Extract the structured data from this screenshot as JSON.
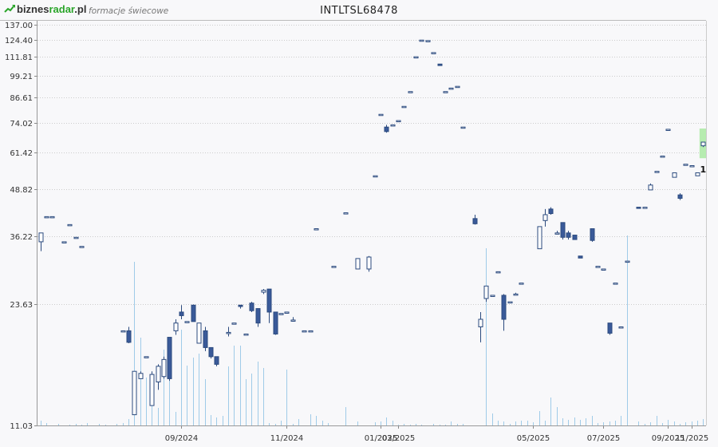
{
  "header": {
    "logo_text_a": "biznes",
    "logo_text_b": "radar",
    "logo_text_c": ".pl",
    "subtitle": "formacje świecowe",
    "ticker": "INTLTSL68478"
  },
  "colors": {
    "candle_up_fill": "#ffffff",
    "candle_down_fill": "#3a5a99",
    "candle_stroke": "#2b4a7e",
    "volume_bar": "#9fcbe8",
    "highlight": "#b6ecb0",
    "grid": "#cccccc",
    "logo_green": "#2aa52a",
    "logo_dark": "#333333"
  },
  "chart_data": {
    "type": "candlestick",
    "title": "INTLTSL68478",
    "y_scale": "log",
    "y_ticks": [
      "137.00",
      "124.40",
      "111.81",
      "99.21",
      "86.61",
      "74.02",
      "61.42",
      "48.82",
      "36.22",
      "23.63",
      "11.03"
    ],
    "ylim": [
      11.03,
      137.0
    ],
    "x_ticks": [
      "09/2024",
      "11/2024",
      "01/2025",
      "03/2025",
      "05/2025",
      "07/2025",
      "09/2025",
      "11/2025"
    ],
    "grid": true,
    "pattern_markers": [
      {
        "label": "1",
        "candle_index": 113
      }
    ],
    "candles": [
      {
        "o": 35,
        "h": 37,
        "l": 33,
        "c": 37
      },
      {
        "o": 41,
        "h": 41,
        "l": 41,
        "c": 41
      },
      {
        "o": 41,
        "h": 41,
        "l": 41,
        "c": 41
      },
      {
        "o": null
      },
      {
        "o": 35,
        "h": 35,
        "l": 35,
        "c": 35
      },
      {
        "o": 39,
        "h": 39,
        "l": 39,
        "c": 39
      },
      {
        "o": 36,
        "h": 36,
        "l": 36,
        "c": 36
      },
      {
        "o": 34,
        "h": 34,
        "l": 34,
        "c": 34
      },
      {
        "o": null
      },
      {
        "o": null
      },
      {
        "o": null
      },
      {
        "o": null
      },
      {
        "o": null
      },
      {
        "o": null
      },
      {
        "o": 20,
        "h": 20,
        "l": 20,
        "c": 20
      },
      {
        "o": 20,
        "h": 20.5,
        "l": 18.5,
        "c": 18.6
      },
      {
        "o": 11.8,
        "h": 15.5,
        "l": 11.8,
        "c": 15.5
      },
      {
        "o": 14.8,
        "h": 15.5,
        "l": 14.8,
        "c": 15.3
      },
      {
        "o": 17,
        "h": 17,
        "l": 17,
        "c": 17
      },
      {
        "o": 12.5,
        "h": 15.5,
        "l": 12.5,
        "c": 15.2
      },
      {
        "o": 14.5,
        "h": 16.2,
        "l": 13.8,
        "c": 16
      },
      {
        "o": 15,
        "h": 17,
        "l": 14.8,
        "c": 16.7
      },
      {
        "o": 19.2,
        "h": 19.2,
        "l": 14.6,
        "c": 14.8
      },
      {
        "o": 20,
        "h": 21.5,
        "l": 19.5,
        "c": 21
      },
      {
        "o": 22.5,
        "h": 23.5,
        "l": 21.5,
        "c": 22
      },
      {
        "o": 21.2,
        "h": 21.2,
        "l": 21.2,
        "c": 21.2
      },
      {
        "o": 23.5,
        "h": 23.6,
        "l": 21.2,
        "c": 21.2
      },
      {
        "o": 18.5,
        "h": 21,
        "l": 18.5,
        "c": 21
      },
      {
        "o": 20,
        "h": 20.5,
        "l": 17.6,
        "c": 18
      },
      {
        "o": 18,
        "h": 18,
        "l": 16.8,
        "c": 17
      },
      {
        "o": 17,
        "h": 17,
        "l": 16,
        "c": 16.2
      },
      {
        "o": null
      },
      {
        "o": 19.8,
        "h": 20.5,
        "l": 19.3,
        "c": 19.8
      },
      {
        "o": 21,
        "h": 21,
        "l": 21,
        "c": 21
      },
      {
        "o": 23.5,
        "h": 23.5,
        "l": 23,
        "c": 23.3
      },
      {
        "o": 19.6,
        "h": 19.6,
        "l": 19.6,
        "c": 19.6
      },
      {
        "o": 23.8,
        "h": 24,
        "l": 22.5,
        "c": 22.7
      },
      {
        "o": 23,
        "h": 23,
        "l": 20.5,
        "c": 21
      },
      {
        "o": 25.5,
        "h": 26,
        "l": 25.2,
        "c": 25.8
      },
      {
        "o": 26,
        "h": 26,
        "l": 21,
        "c": 22.5
      },
      {
        "o": 22.5,
        "h": 22.5,
        "l": 19.5,
        "c": 19.6
      },
      {
        "o": 22.3,
        "h": 22.3,
        "l": 22.3,
        "c": 22.3
      },
      {
        "o": 22.5,
        "h": 22.5,
        "l": 22.5,
        "c": 22.5
      },
      {
        "o": 21.4,
        "h": 21.8,
        "l": 21.2,
        "c": 21.4
      },
      {
        "o": null
      },
      {
        "o": 20,
        "h": 20,
        "l": 20,
        "c": 20
      },
      {
        "o": 20,
        "h": 20,
        "l": 20,
        "c": 20
      },
      {
        "o": 38,
        "h": 38,
        "l": 38,
        "c": 38
      },
      {
        "o": null
      },
      {
        "o": null
      },
      {
        "o": 30,
        "h": 30,
        "l": 30,
        "c": 30
      },
      {
        "o": null
      },
      {
        "o": 42,
        "h": 42,
        "l": 42,
        "c": 42
      },
      {
        "o": null
      },
      {
        "o": 29.5,
        "h": 31.5,
        "l": 29.5,
        "c": 31.5
      },
      {
        "o": null
      },
      {
        "o": 29.5,
        "h": 32,
        "l": 29,
        "c": 31.8
      },
      {
        "o": 53,
        "h": 53,
        "l": 53,
        "c": 53
      },
      {
        "o": 78,
        "h": 78,
        "l": 78,
        "c": 78
      },
      {
        "o": 72,
        "h": 73,
        "l": 69.5,
        "c": 70
      },
      {
        "o": 73,
        "h": 73,
        "l": 73,
        "c": 73
      },
      {
        "o": 75,
        "h": 75,
        "l": 75,
        "c": 75
      },
      {
        "o": 82,
        "h": 82,
        "l": 82,
        "c": 82
      },
      {
        "o": 90,
        "h": 90,
        "l": 90,
        "c": 90
      },
      {
        "o": 112,
        "h": 112,
        "l": 112,
        "c": 112
      },
      {
        "o": 124.4,
        "h": 124.4,
        "l": 124.4,
        "c": 124.4
      },
      {
        "o": 124,
        "h": 124,
        "l": 124,
        "c": 124
      },
      {
        "o": 115,
        "h": 115,
        "l": 115,
        "c": 115
      },
      {
        "o": 107,
        "h": 107,
        "l": 106,
        "c": 106
      },
      {
        "o": 90,
        "h": 90,
        "l": 90,
        "c": 90
      },
      {
        "o": 92,
        "h": 92,
        "l": 92,
        "c": 92
      },
      {
        "o": 93,
        "h": 93,
        "l": 93,
        "c": 93
      },
      {
        "o": 72,
        "h": 72,
        "l": 72,
        "c": 72
      },
      {
        "o": null
      },
      {
        "o": 40.5,
        "h": 41.5,
        "l": 39,
        "c": 39.2
      },
      {
        "o": 20.5,
        "h": 22.5,
        "l": 18.6,
        "c": 21.5
      },
      {
        "o": 24.5,
        "h": 26.5,
        "l": 24,
        "c": 26.5
      },
      {
        "o": 25,
        "h": 25,
        "l": 25,
        "c": 25
      },
      {
        "o": 29,
        "h": 29,
        "l": 29,
        "c": 29
      },
      {
        "o": 25,
        "h": 25.2,
        "l": 20,
        "c": 21.5
      },
      {
        "o": 24,
        "h": 24,
        "l": 24,
        "c": 24
      },
      {
        "o": 25.2,
        "h": 25.4,
        "l": 25,
        "c": 25.2
      },
      {
        "o": 27,
        "h": 27,
        "l": 27,
        "c": 27
      },
      {
        "o": null
      },
      {
        "o": null
      },
      {
        "o": 33.5,
        "h": 38.5,
        "l": 33.5,
        "c": 38.5
      },
      {
        "o": 40,
        "h": 43,
        "l": 38.5,
        "c": 41.5
      },
      {
        "o": 43,
        "h": 43.5,
        "l": 41.5,
        "c": 41.8
      },
      {
        "o": 37,
        "h": 37.5,
        "l": 37,
        "c": 37
      },
      {
        "o": 39.5,
        "h": 39.5,
        "l": 35.5,
        "c": 36
      },
      {
        "o": 37,
        "h": 37.5,
        "l": 35.5,
        "c": 36
      },
      {
        "o": 36.5,
        "h": 36.5,
        "l": 35.5,
        "c": 35.5
      },
      {
        "o": 32,
        "h": 32,
        "l": 31.6,
        "c": 31.6
      },
      {
        "o": null
      },
      {
        "o": 38,
        "h": 38,
        "l": 35,
        "c": 35.3
      },
      {
        "o": 30,
        "h": 30,
        "l": 30,
        "c": 30
      },
      {
        "o": 29.5,
        "h": 29.5,
        "l": 29.5,
        "c": 29.5
      },
      {
        "o": 21,
        "h": 21,
        "l": 19.5,
        "c": 19.7
      },
      {
        "o": 27,
        "h": 27,
        "l": 27,
        "c": 27
      },
      {
        "o": 20.5,
        "h": 20.5,
        "l": 20.5,
        "c": 20.5
      },
      {
        "o": 31,
        "h": 31,
        "l": 31,
        "c": 31
      },
      {
        "o": null
      },
      {
        "o": 43.5,
        "h": 43.5,
        "l": 43.2,
        "c": 43.2
      },
      {
        "o": 43.5,
        "h": 43.5,
        "l": 43.5,
        "c": 43.5
      },
      {
        "o": 48.5,
        "h": 50.5,
        "l": 48.5,
        "c": 50
      },
      {
        "o": 54.5,
        "h": 54.5,
        "l": 54.5,
        "c": 54.5
      },
      {
        "o": 60,
        "h": 60,
        "l": 60,
        "c": 60
      },
      {
        "o": 71,
        "h": 71,
        "l": 71,
        "c": 71
      },
      {
        "o": 52.5,
        "h": 54,
        "l": 52.5,
        "c": 54
      },
      {
        "o": 47,
        "h": 47.5,
        "l": 45.5,
        "c": 46
      },
      {
        "o": 57,
        "h": 57,
        "l": 57,
        "c": 57
      },
      {
        "o": 56.5,
        "h": 56.5,
        "l": 56.5,
        "c": 56.5
      },
      {
        "o": 53,
        "h": 54,
        "l": 53,
        "c": 54
      },
      {
        "o": 64,
        "h": 65.5,
        "l": 63.5,
        "c": 65.5
      }
    ]
  },
  "labels": {
    "marker_1": "1"
  }
}
